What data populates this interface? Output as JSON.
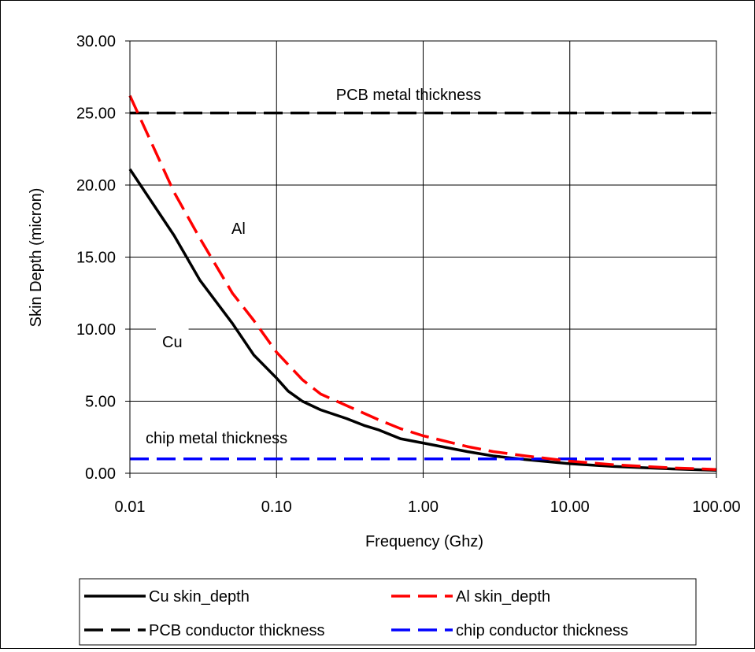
{
  "chart_data": {
    "type": "line",
    "x_scale": "log",
    "xlabel": "Frequency (Ghz)",
    "ylabel": "Skin Depth (micron)",
    "xlim": [
      0.01,
      100
    ],
    "ylim": [
      0,
      30
    ],
    "grid": true,
    "legend_position": "bottom",
    "x_ticks": [
      0.01,
      0.1,
      1,
      10,
      100
    ],
    "x_tick_labels": [
      "0.01",
      "0.10",
      "1.00",
      "10.00",
      "100.00"
    ],
    "y_ticks": [
      0,
      5,
      10,
      15,
      20,
      25,
      30
    ],
    "y_tick_labels": [
      "0.00",
      "5.00",
      "10.00",
      "15.00",
      "20.00",
      "25.00",
      "30.00"
    ],
    "annotations": {
      "pcb": "PCB metal thickness",
      "al": "Al",
      "cu": "Cu",
      "chip": "chip metal thickness"
    },
    "series": [
      {
        "name": "Cu skin_depth",
        "color": "#000000",
        "dash": "solid",
        "points": [
          [
            0.01,
            21.1
          ],
          [
            0.02,
            16.5
          ],
          [
            0.03,
            13.4
          ],
          [
            0.05,
            10.4
          ],
          [
            0.07,
            8.2
          ],
          [
            0.1,
            6.6
          ],
          [
            0.12,
            5.7
          ],
          [
            0.15,
            5.0
          ],
          [
            0.2,
            4.4
          ],
          [
            0.3,
            3.8
          ],
          [
            0.4,
            3.3
          ],
          [
            0.5,
            3.0
          ],
          [
            0.7,
            2.4
          ],
          [
            1.0,
            2.1
          ],
          [
            2.0,
            1.5
          ],
          [
            3.0,
            1.2
          ],
          [
            5.0,
            0.95
          ],
          [
            10,
            0.66
          ],
          [
            20,
            0.47
          ],
          [
            50,
            0.3
          ],
          [
            100,
            0.21
          ]
        ]
      },
      {
        "name": "Al skin_depth",
        "color": "#ff0000",
        "dash": "dash",
        "points": [
          [
            0.01,
            26.2
          ],
          [
            0.02,
            19.5
          ],
          [
            0.03,
            16.3
          ],
          [
            0.05,
            12.5
          ],
          [
            0.07,
            10.6
          ],
          [
            0.1,
            8.4
          ],
          [
            0.15,
            6.5
          ],
          [
            0.2,
            5.5
          ],
          [
            0.3,
            4.7
          ],
          [
            0.5,
            3.7
          ],
          [
            0.7,
            3.1
          ],
          [
            1.0,
            2.6
          ],
          [
            2.0,
            1.85
          ],
          [
            3.0,
            1.5
          ],
          [
            5.0,
            1.2
          ],
          [
            10,
            0.84
          ],
          [
            20,
            0.59
          ],
          [
            50,
            0.37
          ],
          [
            100,
            0.26
          ]
        ]
      },
      {
        "name": "PCB conductor thickness",
        "color": "#000000",
        "dash": "dash",
        "points": [
          [
            0.01,
            25
          ],
          [
            100,
            25
          ]
        ]
      },
      {
        "name": "chip conductor thickness",
        "color": "#0000ff",
        "dash": "dash",
        "points": [
          [
            0.01,
            1
          ],
          [
            100,
            1
          ]
        ]
      }
    ]
  }
}
